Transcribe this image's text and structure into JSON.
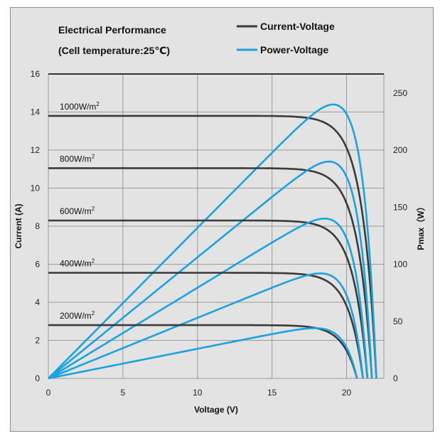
{
  "chart_data": {
    "type": "line",
    "title": "Electrical Performance",
    "subtitle": "(Cell temperature:25℃)",
    "xlabel": "Voltage (V)",
    "ylabel": "Current (A)",
    "y2label": "Pmax（W）",
    "xlim": [
      0,
      22.5
    ],
    "ylim": [
      0,
      16
    ],
    "y2lim": [
      0,
      266.7
    ],
    "xticks": [
      "0",
      "5",
      "10",
      "15",
      "20"
    ],
    "yticks": [
      "0",
      "2",
      "4",
      "6",
      "8",
      "10",
      "12",
      "14",
      "16"
    ],
    "y2ticks": [
      "0",
      "50",
      "100",
      "150",
      "200",
      "250"
    ],
    "grid": true,
    "legend": [
      {
        "name": "Current-Voltage",
        "color": "#3a3a3a"
      },
      {
        "name": "Power-Voltage",
        "color": "#1aa3e0"
      }
    ],
    "legend_position": "top-right",
    "series": [
      {
        "irradiance": "1000W/m",
        "isc": 13.8,
        "voc": 22.0,
        "pmax": 240
      },
      {
        "irradiance": "800W/m",
        "isc": 11.05,
        "voc": 21.7,
        "pmax": 190
      },
      {
        "irradiance": "600W/m",
        "isc": 8.3,
        "voc": 21.4,
        "pmax": 140
      },
      {
        "irradiance": "400W/m",
        "isc": 5.55,
        "voc": 21.1,
        "pmax": 92
      },
      {
        "irradiance": "200W/m",
        "isc": 2.8,
        "voc": 20.7,
        "pmax": 44
      }
    ],
    "irradiance_superscript": "2"
  }
}
